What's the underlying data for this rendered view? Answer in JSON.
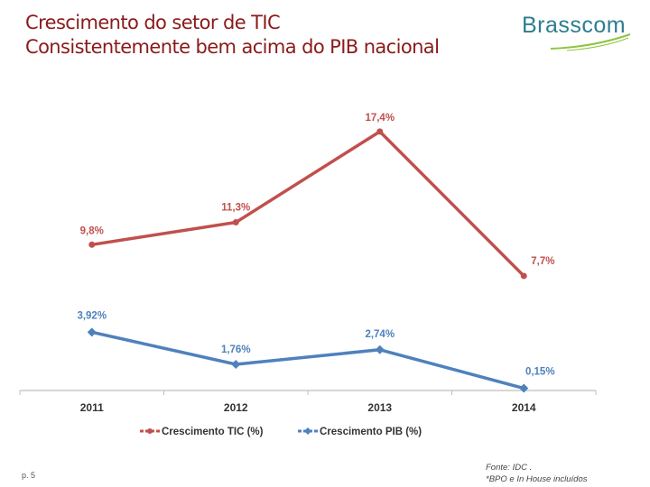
{
  "header": {
    "title_line1": "Crescimento do setor de TIC",
    "title_line2": "Consistentemente bem acima do PIB nacional",
    "logo": "Brasscom"
  },
  "footer": {
    "page": "p. 5",
    "source": "Fonte: IDC .",
    "note": "*BPO e In House incluídos"
  },
  "colors": {
    "tic": "#c0504d",
    "pib": "#4f81bd",
    "title": "#8b1a1a",
    "logo": "#2e7d8f"
  },
  "chart_data": {
    "type": "line",
    "categories": [
      "2011",
      "2012",
      "2013",
      "2014"
    ],
    "series": [
      {
        "name": "Crescimento TIC (%)",
        "values": [
          9.8,
          11.3,
          17.4,
          7.7
        ],
        "labels": [
          "9,8%",
          "11,3%",
          "17,4%",
          "7,7%"
        ],
        "marker": "circle"
      },
      {
        "name": "Crescimento PIB (%)",
        "values": [
          3.92,
          1.76,
          2.74,
          0.15
        ],
        "labels": [
          "3,92%",
          "1,76%",
          "2,74%",
          "0,15%"
        ],
        "marker": "diamond"
      }
    ],
    "ylim": [
      0,
      20
    ],
    "grid": false,
    "legend": "bottom"
  }
}
